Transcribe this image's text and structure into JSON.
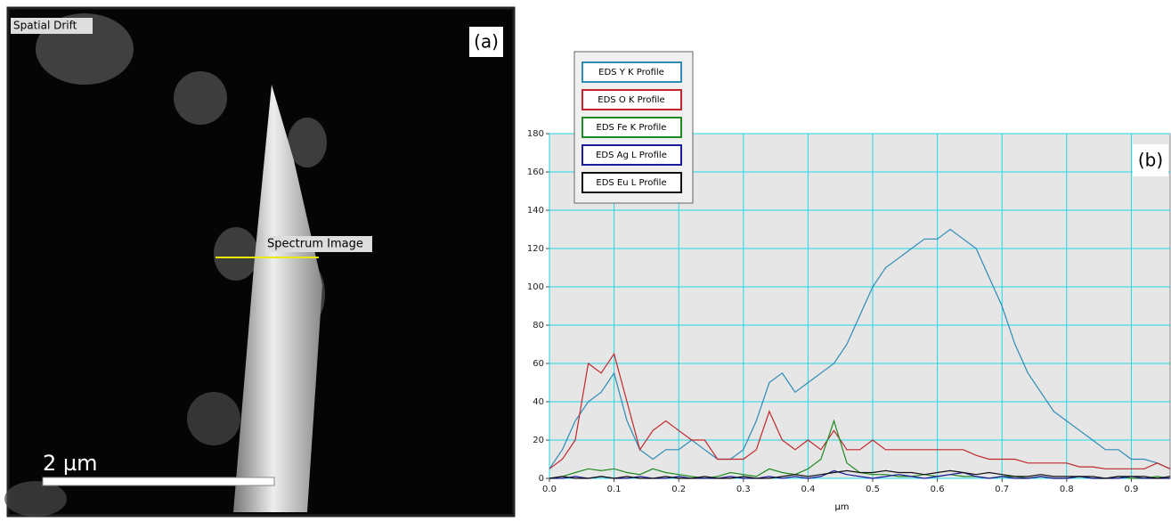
{
  "image_panel": {
    "top_left_label": "Spatial Drift",
    "panel_label": "(a)",
    "line_label": "Spectrum Image",
    "scale_bar": "2 µm"
  },
  "chart_data": {
    "type": "line",
    "panel_label": "(b)",
    "x_label": "µm",
    "xlim": [
      0,
      0.96
    ],
    "ylim": [
      0,
      180
    ],
    "xticks": [
      {
        "value": 0,
        "label": "0.0"
      },
      0.1,
      0.2,
      0.3,
      0.4,
      0.5,
      0.6,
      0.7,
      0.8,
      0.9
    ],
    "yticks": [
      0,
      20,
      40,
      60,
      80,
      100,
      120,
      140,
      160,
      180
    ],
    "grid": true,
    "legend": "top-left",
    "x": [
      0,
      0.02,
      0.04,
      0.06,
      0.08,
      0.1,
      0.12,
      0.14,
      0.16,
      0.18,
      0.2,
      0.22,
      0.24,
      0.26,
      0.28,
      0.3,
      0.32,
      0.34,
      0.36,
      0.38,
      0.4,
      0.42,
      0.44,
      0.46,
      0.48,
      0.5,
      0.52,
      0.54,
      0.56,
      0.58,
      0.6,
      0.62,
      0.64,
      0.66,
      0.68,
      0.7,
      0.72,
      0.74,
      0.76,
      0.78,
      0.8,
      0.82,
      0.84,
      0.86,
      0.88,
      0.9,
      0.92,
      0.94,
      0.96
    ],
    "series": [
      {
        "name": "EDS Y K Profile",
        "color": "#2e8bb8",
        "values": [
          5,
          15,
          30,
          40,
          45,
          55,
          30,
          15,
          10,
          15,
          15,
          20,
          15,
          10,
          10,
          15,
          30,
          50,
          55,
          45,
          50,
          55,
          60,
          70,
          85,
          100,
          110,
          115,
          120,
          125,
          125,
          130,
          125,
          120,
          105,
          90,
          70,
          55,
          45,
          35,
          30,
          25,
          20,
          15,
          15,
          10,
          10,
          8,
          5
        ]
      },
      {
        "name": "EDS O K Profile",
        "color": "#c0282d",
        "values": [
          5,
          10,
          20,
          60,
          55,
          65,
          40,
          15,
          25,
          30,
          25,
          20,
          20,
          10,
          10,
          10,
          15,
          35,
          20,
          15,
          20,
          15,
          25,
          15,
          15,
          20,
          15,
          15,
          15,
          15,
          15,
          15,
          15,
          12,
          10,
          10,
          10,
          8,
          8,
          8,
          8,
          6,
          6,
          5,
          5,
          5,
          5,
          8,
          5
        ]
      },
      {
        "name": "EDS Fe K Profile",
        "color": "#1f8a1f",
        "values": [
          0,
          1,
          3,
          5,
          4,
          5,
          3,
          2,
          5,
          3,
          2,
          1,
          0,
          1,
          3,
          2,
          1,
          5,
          3,
          2,
          5,
          10,
          30,
          8,
          3,
          2,
          2,
          1,
          1,
          2,
          1,
          2,
          1,
          1,
          0,
          1,
          1,
          0,
          1,
          0,
          0,
          1,
          0,
          0,
          1,
          0,
          0,
          1,
          0
        ]
      },
      {
        "name": "EDS Ag L Profile",
        "color": "#1a1a9a",
        "values": [
          0,
          0,
          1,
          0,
          1,
          0,
          0,
          1,
          0,
          0,
          1,
          0,
          0,
          0,
          1,
          0,
          0,
          1,
          0,
          1,
          0,
          1,
          4,
          2,
          1,
          0,
          1,
          2,
          1,
          0,
          1,
          2,
          3,
          1,
          0,
          1,
          0,
          0,
          1,
          0,
          0,
          1,
          0,
          0,
          0,
          1,
          0,
          0,
          0
        ]
      },
      {
        "name": "EDS Eu L Profile",
        "color": "#111111",
        "values": [
          0,
          1,
          0,
          0,
          1,
          0,
          1,
          0,
          0,
          1,
          0,
          0,
          1,
          0,
          0,
          1,
          0,
          0,
          1,
          2,
          1,
          2,
          3,
          4,
          3,
          3,
          4,
          3,
          3,
          2,
          3,
          4,
          3,
          2,
          3,
          2,
          1,
          1,
          2,
          1,
          1,
          1,
          1,
          0,
          1,
          1,
          1,
          0,
          1
        ]
      }
    ]
  }
}
